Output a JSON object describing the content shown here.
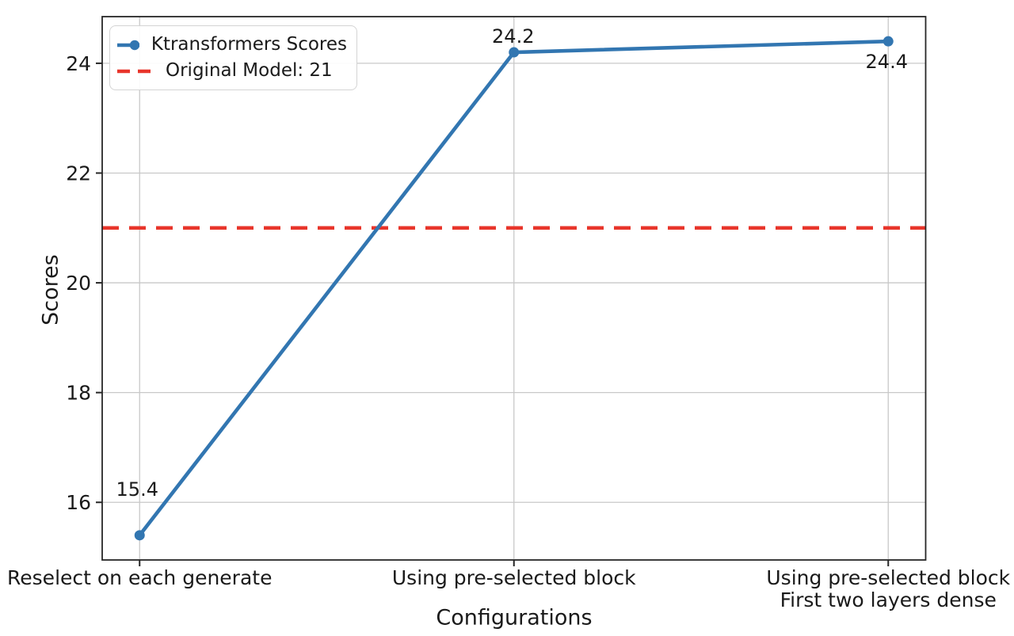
{
  "chart_data": {
    "type": "line",
    "title": "",
    "xlabel": "Configurations",
    "ylabel": "Scores",
    "categories": [
      "Reselect on each generate",
      "Using pre-selected block",
      "Using pre-selected block\nFirst two layers dense"
    ],
    "series": [
      {
        "name": "Ktransformers Scores",
        "values": [
          15.4,
          24.2,
          24.4
        ],
        "color": "#3276b1",
        "marker": "circle",
        "line_style": "solid"
      }
    ],
    "reference_line": {
      "name": "Original Model: 21",
      "value": 21,
      "color": "#e8352b",
      "line_style": "dashed"
    },
    "point_labels": [
      "15.4",
      "24.2",
      "24.4"
    ],
    "yticks": [
      16,
      18,
      20,
      22,
      24
    ],
    "ylim": [
      14.95,
      24.85
    ],
    "xlim": [
      -0.1,
      2.1
    ],
    "grid": true,
    "legend_position": "upper-left",
    "colors": {
      "grid": "#c8c8c8",
      "spine": "#262626",
      "text": "#1a1a1a"
    }
  }
}
